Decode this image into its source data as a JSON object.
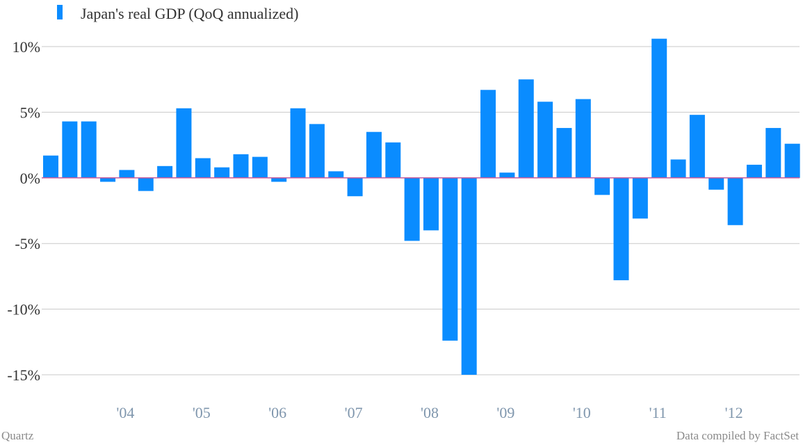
{
  "colors": {
    "bar": "#0a8cff",
    "zero_line": "#c55a9c",
    "grid": "#c8c8c8",
    "tick_text": "#333333",
    "xtick_text": "#7f96ad",
    "footer_text": "#8a8a8a"
  },
  "footer": {
    "left": "Quartz",
    "right": "Data compiled by FactSet"
  },
  "chart_data": {
    "type": "bar",
    "legend": "top-left",
    "grid": true,
    "ylim": [
      -15,
      10.7
    ],
    "yticks": [
      10,
      5,
      0,
      -5,
      -10,
      -15
    ],
    "ytick_labels": [
      "10%",
      "5%",
      "0%",
      "-5%",
      "-10%",
      "-15%"
    ],
    "xtick_labels": [
      "'04",
      "'05",
      "'06",
      "'07",
      "'08",
      "'09",
      "'10",
      "'11",
      "'12"
    ],
    "xtick_quarter_index": [
      4,
      8,
      12,
      16,
      20,
      24,
      28,
      32,
      36
    ],
    "series": [
      {
        "name": "Japan's real GDP (QoQ annualized)",
        "values": [
          1.7,
          4.3,
          4.3,
          -0.3,
          0.6,
          -1.0,
          0.9,
          5.3,
          1.5,
          0.8,
          1.8,
          1.6,
          -0.3,
          5.3,
          4.1,
          0.5,
          -1.4,
          3.5,
          2.7,
          -4.8,
          -4.0,
          -12.4,
          -15.0,
          6.7,
          0.4,
          7.5,
          5.8,
          3.8,
          6.0,
          -1.3,
          -7.8,
          -3.1,
          10.6,
          1.4,
          4.8,
          -0.9,
          -3.6,
          1.0,
          3.8,
          2.6
        ]
      }
    ]
  }
}
